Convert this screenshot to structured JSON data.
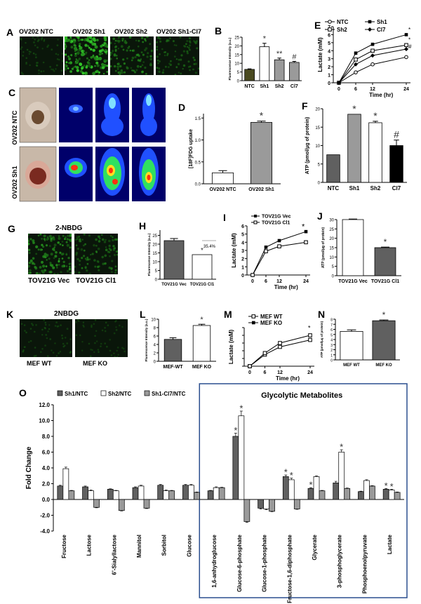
{
  "panel_letters": [
    "A",
    "B",
    "C",
    "D",
    "E",
    "F",
    "G",
    "H",
    "I",
    "J",
    "K",
    "L",
    "M",
    "N",
    "O"
  ],
  "colors": {
    "dark_olive": "#4a4a20",
    "gray": "#9a9a9a",
    "dark": "#606060",
    "black": "#000000",
    "white": "#ffffff",
    "box_blue": "#2a4f8f"
  },
  "panelA": {
    "labels": [
      "OV202 NTC",
      "OV202 Sh1",
      "OV202 Sh2",
      "OV202 Sh1-Cl7"
    ],
    "green_intensity": [
      0.15,
      0.85,
      0.45,
      0.3
    ]
  },
  "panelC": {
    "row_labels": [
      "OV202 NTC",
      "OV202 Sh1"
    ]
  },
  "panelG": {
    "title": "2-NBDG",
    "labels": [
      "TOV21G Vec",
      "TOV21G Cl1"
    ],
    "green_intensity": [
      0.6,
      0.4
    ]
  },
  "panelK": {
    "title": "2NBDG",
    "labels": [
      "MEF WT",
      "MEF KO"
    ],
    "green_intensity": [
      0.12,
      0.1
    ]
  },
  "chart_data": [
    {
      "panel": "B",
      "type": "bar",
      "ylabel": "Fluorescence Intensity (a.u.)",
      "categories": [
        "NTC",
        "Sh1",
        "Sh2",
        "Cl7"
      ],
      "values": [
        6.5,
        19.5,
        12,
        10.5
      ],
      "errors": [
        0.3,
        2,
        1,
        0.6
      ],
      "colors": [
        "#4a4a20",
        "#ffffff",
        "#9a9a9a",
        "#9a9a9a"
      ],
      "ylim": [
        0,
        25
      ],
      "annotations": [
        "",
        "*",
        "**",
        "#"
      ]
    },
    {
      "panel": "D",
      "type": "bar",
      "ylabel": "[18F]FDG uptake",
      "categories": [
        "OV202 NTC",
        "OV202 Sh1"
      ],
      "values": [
        0.25,
        1.4
      ],
      "errors": [
        0.05,
        0.03
      ],
      "colors": [
        "#ffffff",
        "#9a9a9a"
      ],
      "ylim": [
        0,
        1.6
      ],
      "annotations": [
        "",
        "*"
      ]
    },
    {
      "panel": "E",
      "type": "line",
      "ylabel": "Lactate (mM)",
      "xlabel": "Time (hr)",
      "x": [
        0,
        6,
        12,
        24
      ],
      "xticks": [
        "0",
        "6",
        "12",
        "24"
      ],
      "ylim": [
        0,
        7
      ],
      "yticks": [
        0,
        1,
        2,
        3,
        4,
        5,
        6,
        7
      ],
      "series": [
        {
          "name": "NTC",
          "values": [
            0,
            1.3,
            2.3,
            3.2
          ],
          "marker": "open-circle"
        },
        {
          "name": "Sh1",
          "values": [
            0,
            3.7,
            4.8,
            6
          ],
          "marker": "filled-square"
        },
        {
          "name": "Sh2",
          "values": [
            0,
            2.9,
            4,
            4.7
          ],
          "marker": "open-square"
        },
        {
          "name": "Cl7",
          "values": [
            0,
            2.3,
            3.4,
            4.2
          ],
          "marker": "filled-diamond"
        }
      ],
      "annotations": [
        "*",
        "*",
        "#"
      ]
    },
    {
      "panel": "F",
      "type": "bar",
      "ylabel": "ATP (pmol/μg of protein)",
      "categories": [
        "NTC",
        "Sh1",
        "Sh2",
        "Cl7"
      ],
      "values": [
        7.5,
        18.5,
        16.2,
        10
      ],
      "errors": [
        0,
        0,
        0.4,
        1.5
      ],
      "colors": [
        "#606060",
        "#9a9a9a",
        "#ffffff",
        "#000000"
      ],
      "ylim": [
        0,
        20
      ],
      "yticks": [
        0,
        5,
        10,
        15,
        20
      ],
      "annotations": [
        "",
        "*",
        "*",
        "#"
      ]
    },
    {
      "panel": "H",
      "type": "bar",
      "ylabel": "Fluorescence Intensity (a.u.)",
      "categories": [
        "TOV21G Vec",
        "TOV21G Cl1"
      ],
      "values": [
        22,
        14
      ],
      "errors": [
        1.2,
        0
      ],
      "colors": [
        "#606060",
        "#ffffff"
      ],
      "ylim": [
        0,
        28
      ],
      "annotations": [
        "",
        "*"
      ],
      "note": "35.4%"
    },
    {
      "panel": "I",
      "type": "line",
      "ylabel": "Lactate (mM)",
      "xlabel": "Time (hr)",
      "x": [
        0,
        6,
        12,
        24
      ],
      "xticks": [
        "0",
        "6",
        "12",
        "24"
      ],
      "ylim": [
        0,
        6
      ],
      "yticks": [
        0,
        1,
        2,
        3,
        4,
        5,
        6
      ],
      "series": [
        {
          "name": "TOV21G Vec",
          "values": [
            0,
            3.4,
            4.2,
            5.3
          ],
          "marker": "filled-square"
        },
        {
          "name": "TOV21G Cl1",
          "values": [
            0,
            2.9,
            3.5,
            4
          ]
        }
      ],
      "annotations": [
        "*",
        "*"
      ]
    },
    {
      "panel": "J",
      "type": "bar",
      "ylabel": "ATP (pmol/μg of protein)",
      "categories": [
        "TOV21G Vec",
        "TOV21G Cl1"
      ],
      "values": [
        30,
        15
      ],
      "errors": [
        0.3,
        0.3
      ],
      "colors": [
        "#ffffff",
        "#606060"
      ],
      "ylim": [
        0,
        30
      ],
      "annotations": [
        "",
        "*"
      ]
    },
    {
      "panel": "L",
      "type": "bar",
      "ylabel": "Fluorescence Intensity (a.u.)",
      "categories": [
        "MEF-WT",
        "MEF KO"
      ],
      "values": [
        5.2,
        8.5
      ],
      "errors": [
        0.4,
        0.3
      ],
      "colors": [
        "#606060",
        "#ffffff"
      ],
      "ylim": [
        0,
        10
      ],
      "annotations": [
        "",
        "*"
      ]
    },
    {
      "panel": "M",
      "type": "line",
      "ylabel": "Lactate (mM)",
      "xlabel": "Time (hr)",
      "x": [
        0,
        6,
        12,
        24
      ],
      "xticks": [
        "0",
        "6",
        "12",
        "24"
      ],
      "ylim": [
        0,
        5
      ],
      "series": [
        {
          "name": "MEF WT",
          "values": [
            0,
            1.5,
            2.5,
            3.4
          ],
          "marker": "open-square"
        },
        {
          "name": "MEF KO",
          "values": [
            0,
            1.7,
            3,
            4
          ]
        }
      ],
      "annotations": [
        "*"
      ]
    },
    {
      "panel": "N",
      "type": "bar",
      "ylabel": "ATP (pmol/μg of protein)",
      "yticks": [
        0,
        1,
        2,
        3,
        4,
        5,
        6,
        7,
        8
      ],
      "categories": [
        "MEF WT",
        "MEF KO"
      ],
      "values": [
        5.6,
        7.7
      ],
      "errors": [
        0.3,
        0.15
      ],
      "colors": [
        "#ffffff",
        "#606060"
      ],
      "ylim": [
        0,
        8
      ],
      "annotations": [
        "",
        "*"
      ]
    },
    {
      "panel": "O",
      "type": "bar",
      "ylabel": "Fold Change",
      "ylim": [
        -4,
        12
      ],
      "yticks": [
        "-4.0",
        "-2.0",
        "0.0",
        "2.0",
        "4.0",
        "6.0",
        "8.0",
        "10.0",
        "12.0"
      ],
      "box_title": "Glycolytic Metabolites",
      "categories": [
        "Fructose",
        "Lactose",
        "6'-Sialyllactose",
        "Mannitol",
        "Sorbitol",
        "Glucose",
        "1,6-anhydroglucose",
        "Glucose-6-phosphate",
        "Glucose-1-phosphate",
        "Fructose-1,6-diphosphate",
        "Glycerate",
        "3-phosphoglycerate",
        "Phosphoenolpyruvate",
        "Lactate"
      ],
      "series": [
        {
          "name": "Sh1/NTC",
          "color": "#606060",
          "values": [
            1.7,
            1.6,
            1.3,
            1.5,
            1.8,
            1.8,
            1.1,
            8.0,
            -1.1,
            2.9,
            1.4,
            2.1,
            1.0,
            1.3
          ],
          "errors": [
            0.1,
            0.1,
            0.05,
            0.1,
            0.1,
            0.1,
            0.05,
            0.4,
            0.1,
            0.2,
            0.1,
            0.2,
            0.05,
            0.1
          ]
        },
        {
          "name": "Sh2/NTC",
          "color": "#ffffff",
          "values": [
            3.9,
            1.1,
            1.1,
            1.7,
            1.1,
            1.8,
            1.5,
            10.6,
            -1.2,
            2.5,
            2.9,
            6.0,
            2.4,
            1.2
          ],
          "errors": [
            0.2,
            0.1,
            0.05,
            0.1,
            0.1,
            0.1,
            0.1,
            0.6,
            0.1,
            0.2,
            0.1,
            0.3,
            0.1,
            0.1
          ]
        },
        {
          "name": "Sh1-Cl7/NTC",
          "color": "#9a9a9a",
          "values": [
            1.1,
            -1.0,
            -1.4,
            -1.1,
            1.1,
            0.9,
            1.5,
            -2.8,
            -1.5,
            -1.2,
            1.1,
            1.4,
            1.7,
            0.9
          ],
          "errors": [
            0.05,
            0.05,
            0.05,
            0.05,
            0.05,
            0.05,
            0.05,
            0.1,
            0.05,
            0.05,
            0.05,
            0.05,
            0.05,
            0.05
          ]
        }
      ],
      "stars": [
        {
          "category": 7,
          "series": 0
        },
        {
          "category": 7,
          "series": 1
        },
        {
          "category": 9,
          "series": 0
        },
        {
          "category": 9,
          "series": 1
        },
        {
          "category": 10,
          "series": 0
        },
        {
          "category": 11,
          "series": 1
        },
        {
          "category": 13,
          "series": 0
        },
        {
          "category": 13,
          "series": 1
        }
      ]
    }
  ]
}
